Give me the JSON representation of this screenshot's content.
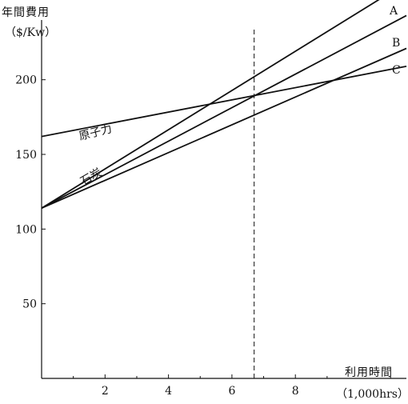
{
  "chart_data": {
    "type": "line",
    "ylabel": "年間費用",
    "ylabel_unit": "（$/Kw）",
    "xlabel": "利用時間",
    "xlabel_unit": "（1,000hrs）",
    "xlim": [
      0,
      11.5
    ],
    "ylim": [
      0,
      240
    ],
    "xticks": [
      2,
      4,
      6,
      8
    ],
    "yticks": [
      50,
      100,
      150,
      200
    ],
    "series": [
      {
        "name": "原子力",
        "x": [
          0,
          11.5
        ],
        "y": [
          162,
          209
        ]
      },
      {
        "name": "A",
        "x": [
          0,
          11.5
        ],
        "y": [
          114,
          265
        ]
      },
      {
        "name": "B",
        "x": [
          0,
          11.5
        ],
        "y": [
          114,
          243
        ]
      },
      {
        "name": "C",
        "x": [
          0,
          11.5
        ],
        "y": [
          114,
          221
        ]
      }
    ],
    "group_label": "石炭",
    "reference_line": {
      "x": 6.7,
      "style": "dashed"
    },
    "colors": {
      "lines": "#111111",
      "background": "#ffffff"
    }
  }
}
